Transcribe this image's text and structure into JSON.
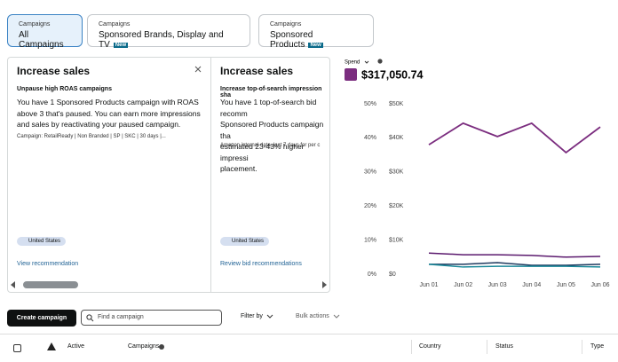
{
  "tabs": [
    {
      "label": "Campaigns",
      "title": "All Campaigns"
    },
    {
      "label": "Campaigns",
      "title": "Sponsored Brands, Display and TV",
      "badge": "New"
    },
    {
      "label": "Campaigns",
      "title": "Sponsored Products",
      "badge": "New"
    }
  ],
  "recommendations": [
    {
      "title": "Increase sales",
      "subtitle": "Unpause high ROAS campaigns",
      "body": [
        "You have 1 Sponsored Products campaign with ROAS",
        "above 3 that's paused. You can earn more impressions",
        "and sales by reactivating your paused campaign."
      ],
      "note": "Campaign: RetailReady | Non Branded | SP | SKC | 30 days |...",
      "region": "United States",
      "link": "View recommendation"
    },
    {
      "title": "Increase sales",
      "subtitle": "Increase top-of-search impression sha",
      "body": [
        "You have 1 top-of-search bid recomm",
        "Sponsored Products campaign tha",
        "estimated 23-43% higher impressi",
        "placement."
      ],
      "note": "Amazon internal data, last 7 days for per c",
      "region": "United States",
      "link": "Review bid recommendations"
    }
  ],
  "chart": {
    "type": "line",
    "metric": "Spend",
    "total": "$317,050.74",
    "x": [
      "Jun 01",
      "Jun 02",
      "Jun 03",
      "Jun 04",
      "Jun 05",
      "Jun 06"
    ],
    "series": [
      {
        "color": "#7b2d7f",
        "values": [
          38000,
          44300,
          40400,
          44300,
          35700,
          43200
        ]
      },
      {
        "color": "#5b1a6e",
        "values": [
          6200,
          5700,
          5700,
          5500,
          5000,
          5200
        ]
      },
      {
        "color": "#1f3a5f",
        "values": [
          2900,
          2900,
          3400,
          2600,
          2600,
          2900
        ]
      },
      {
        "color": "#1b8a9a",
        "values": [
          2900,
          2100,
          2300,
          2300,
          2300,
          2100
        ]
      }
    ],
    "ylim": [
      0,
      50000
    ],
    "yticks": [
      {
        "value": 0,
        "label": "$0"
      },
      {
        "value": 10000,
        "label": "$10K"
      },
      {
        "value": 20000,
        "label": "$20K"
      },
      {
        "value": 30000,
        "label": "$30K"
      },
      {
        "value": 40000,
        "label": "$40K"
      },
      {
        "value": 50000,
        "label": "$50K"
      }
    ],
    "y2lim": [
      0,
      50
    ],
    "y2ticks": [
      {
        "value": 0,
        "label": "0%"
      },
      {
        "value": 10,
        "label": "10%"
      },
      {
        "value": 20,
        "label": "20%"
      },
      {
        "value": 30,
        "label": "30%"
      },
      {
        "value": 40,
        "label": "40%"
      },
      {
        "value": 50,
        "label": "50%"
      }
    ]
  },
  "toolbar": {
    "create": "Create campaign",
    "search_placeholder": "Find a campaign",
    "filter": "Filter by",
    "bulk": "Bulk actions"
  },
  "table": {
    "columns": [
      "Active",
      "Campaigns",
      "Country",
      "Status",
      "Type"
    ]
  }
}
